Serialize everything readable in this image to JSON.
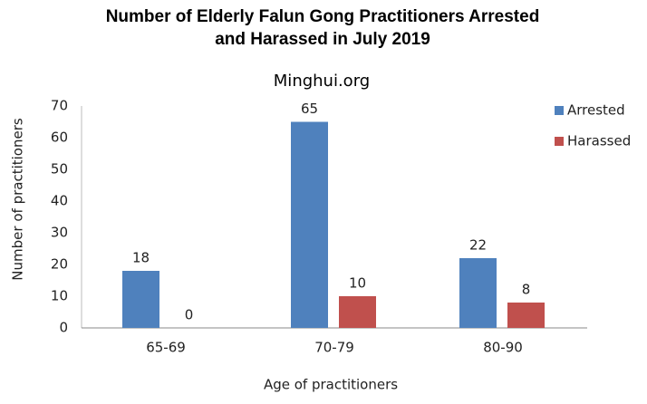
{
  "chart_data": {
    "type": "bar",
    "title": [
      "Number of Elderly Falun Gong Practitioners Arrested",
      "and Harassed in July 2019"
    ],
    "subtitle": "Minghui.org",
    "x_label": "Age of practitioners",
    "y_label": "Number of practitioners",
    "categories": [
      "65-69",
      "70-79",
      "80-90"
    ],
    "series": [
      {
        "name": "Arrested",
        "color": "#4f81bd",
        "values": [
          18,
          65,
          22
        ]
      },
      {
        "name": "Harassed",
        "color": "#c0504d",
        "values": [
          0,
          10,
          8
        ]
      }
    ],
    "ylim": [
      0,
      70
    ],
    "yticks": [
      0,
      10,
      20,
      30,
      40,
      50,
      60,
      70
    ],
    "grid": false,
    "legend": "right"
  }
}
